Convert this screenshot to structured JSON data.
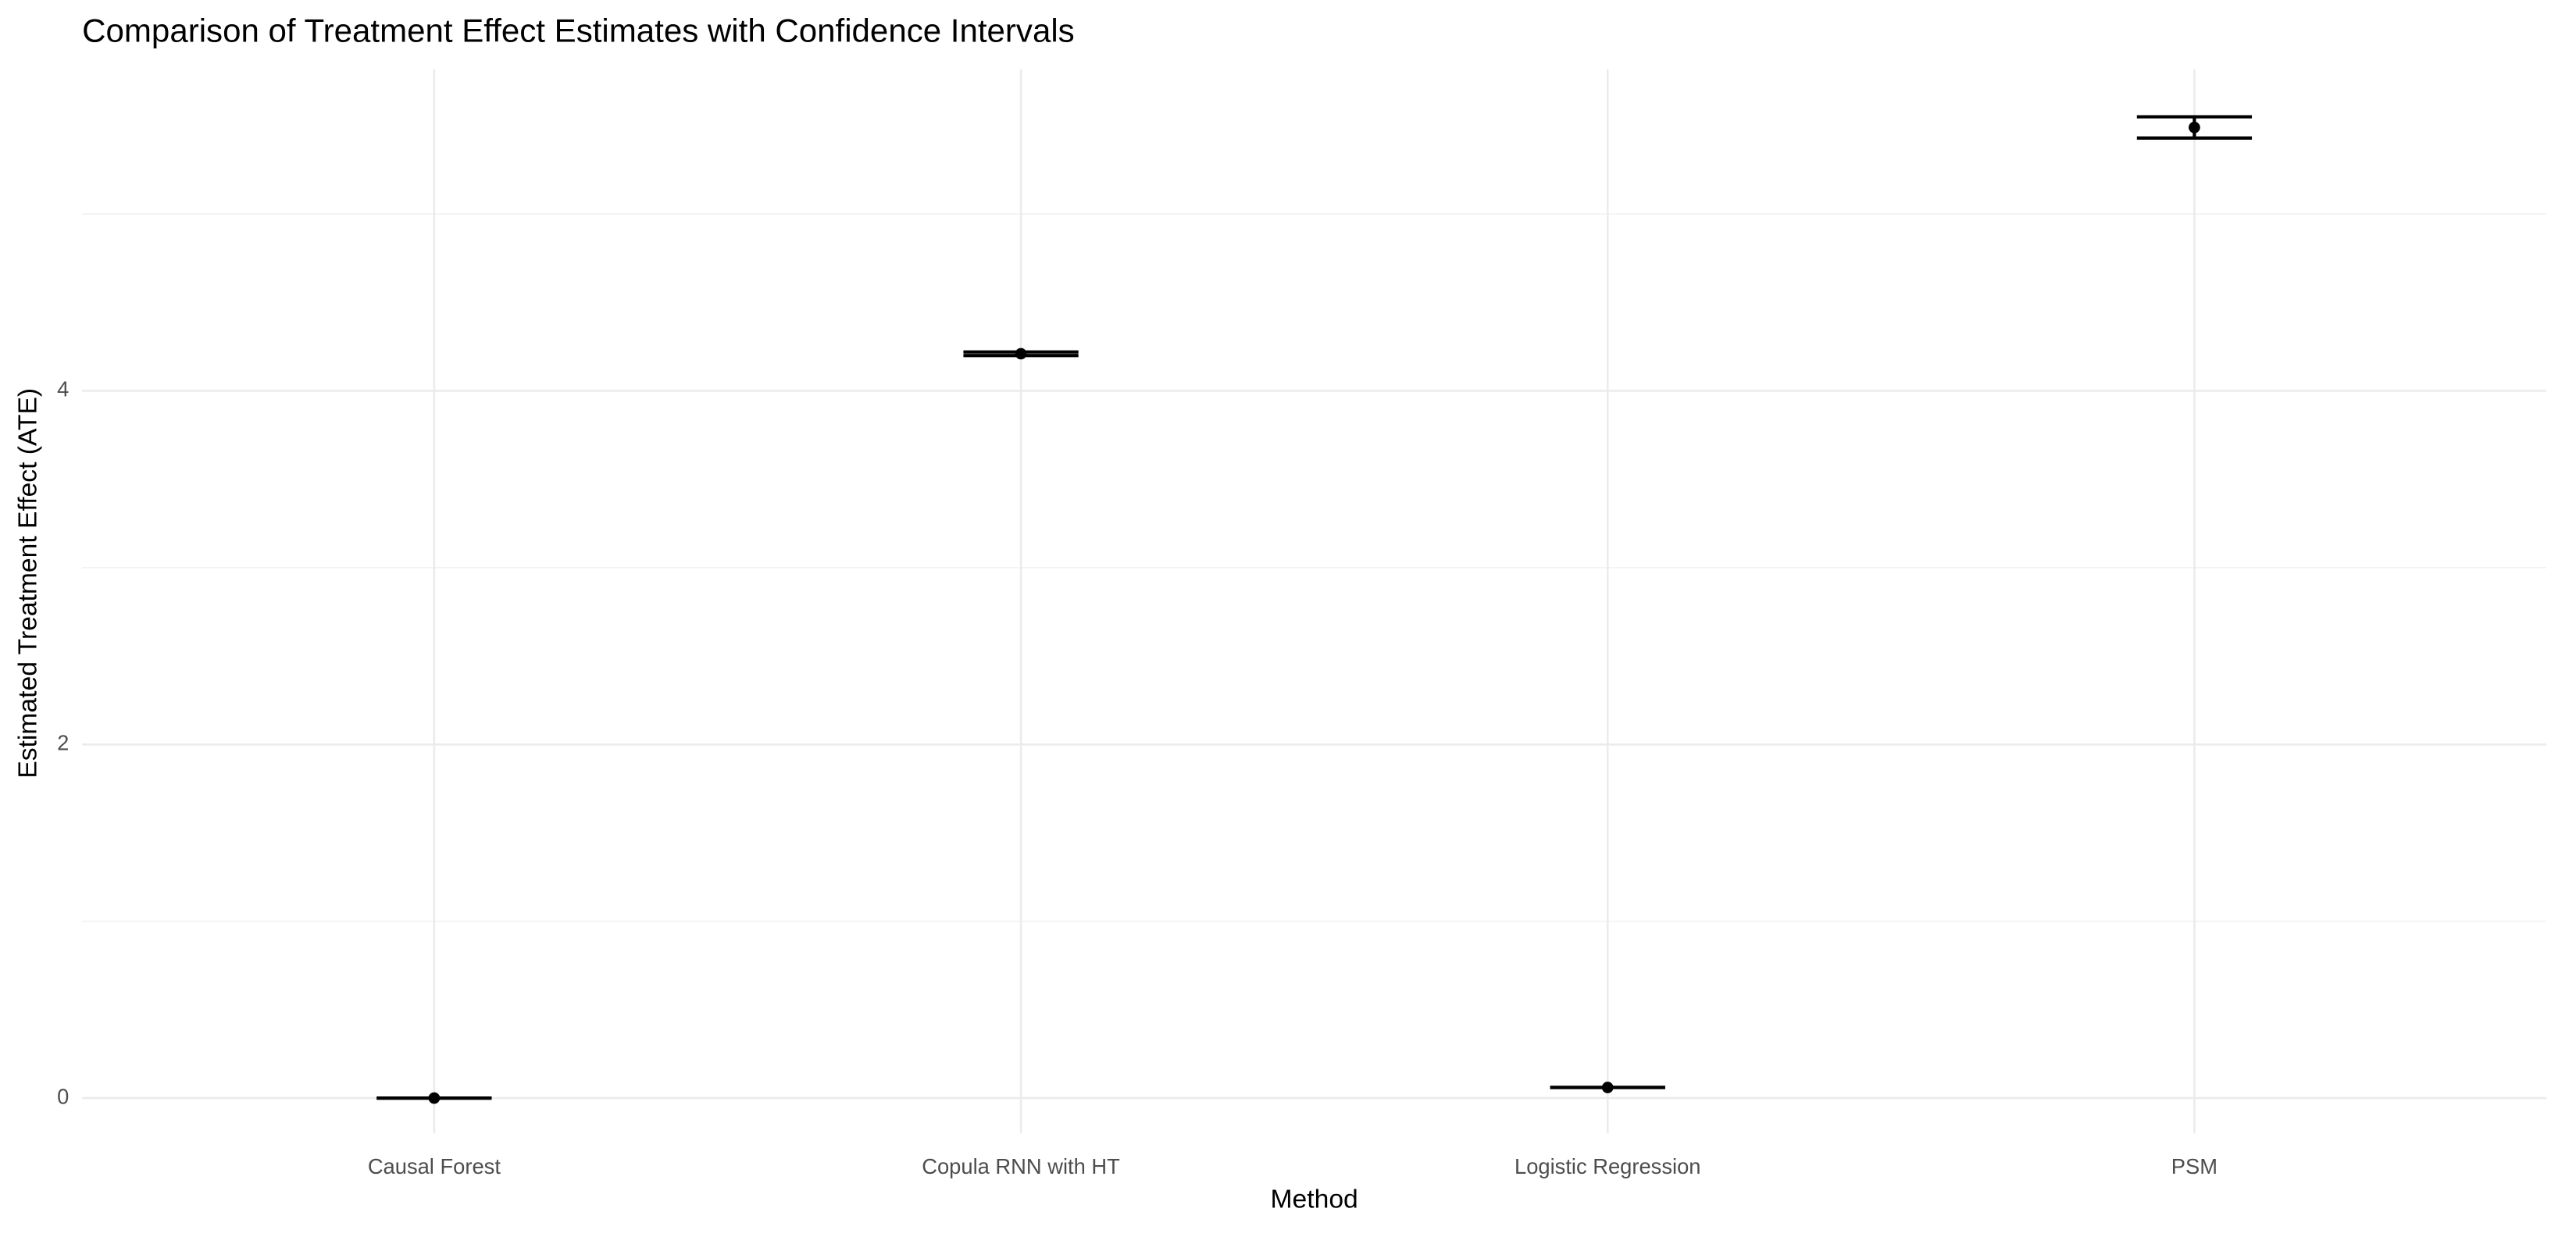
{
  "chart_data": {
    "type": "errorbar",
    "title": "Comparison of Treatment Effect Estimates with Confidence Intervals",
    "x_label": "Method",
    "y_label": "Estimated Treatment Effect (ATE)",
    "categories": [
      "Causal Forest",
      "Copula RNN with HT",
      "Logistic Regression",
      "PSM"
    ],
    "values": [
      0.0,
      4.21,
      0.06,
      5.49
    ],
    "ci_lower": [
      0.0,
      4.2,
      0.06,
      5.43
    ],
    "ci_upper": [
      0.0,
      4.22,
      0.06,
      5.55
    ],
    "color": "#000000",
    "ylim": [
      -0.2,
      5.82
    ],
    "yticks": [
      0,
      2,
      4
    ],
    "minor_yticks": [
      1,
      3,
      5
    ],
    "grid": true
  }
}
